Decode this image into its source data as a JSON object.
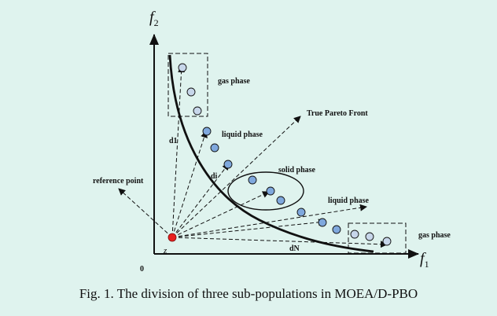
{
  "axes": {
    "y_label": "f",
    "y_sub": "2",
    "x_label": "f",
    "x_sub": "1",
    "origin": "0"
  },
  "labels": {
    "gas_phase_top": "gas phase",
    "gas_phase_bottom": "gas phase",
    "liquid_phase_top": "liquid phase",
    "liquid_phase_bottom": "liquid phase",
    "solid_phase": "solid phase",
    "true_pareto_front": "True Pareto Front",
    "reference_point": "reference point",
    "z": "z",
    "d1": "d1",
    "di": "di",
    "dn": "dN"
  },
  "caption": "Fig. 1.   The division of three sub-populations in MOEA/D-PBO",
  "colors": {
    "point_fill": "#7fa8dd",
    "gas_point_fill": "#c7d6ea",
    "reference_point": "#e8201e",
    "background": "#dff3ee"
  }
}
